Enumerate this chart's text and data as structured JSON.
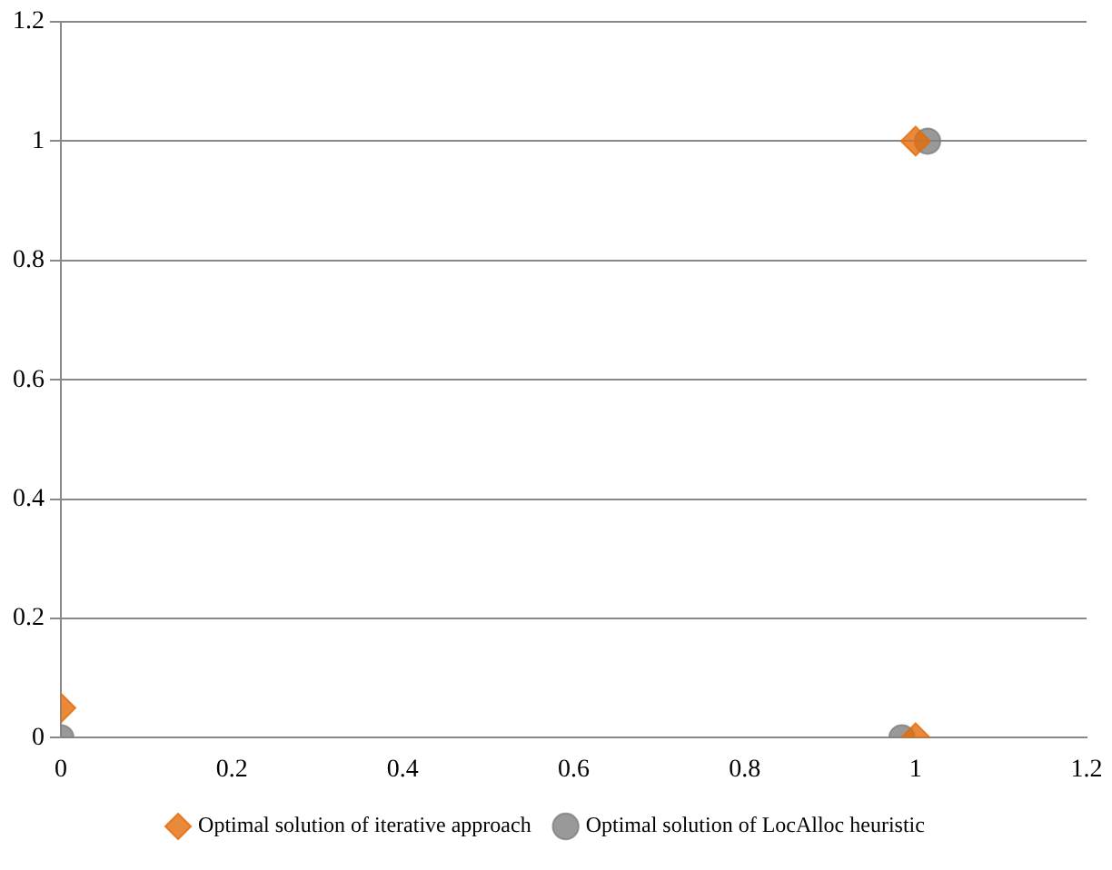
{
  "chart_data": {
    "type": "scatter",
    "xlim": [
      0,
      1.2
    ],
    "xticks": [
      0,
      0.2,
      0.4,
      0.6,
      0.8,
      1,
      1.2
    ],
    "ylim": [
      0,
      1.2
    ],
    "yticks": [
      0,
      0.2,
      0.4,
      0.6,
      0.8,
      1,
      1.2
    ],
    "grid": "y",
    "legend": "bottom",
    "series": [
      {
        "name": "Optimal solution of iterative approach",
        "color": "#e46c0a",
        "marker": "diamond",
        "x": [
          1,
          0,
          1
        ],
        "values": [
          1,
          0.05,
          0
        ]
      },
      {
        "name": "Optimal solution of LocAlloc heuristic",
        "color": "#7f7f7f",
        "marker": "circle",
        "x": [
          1.014,
          0,
          0.984
        ],
        "values": [
          1,
          0,
          0
        ]
      }
    ]
  }
}
